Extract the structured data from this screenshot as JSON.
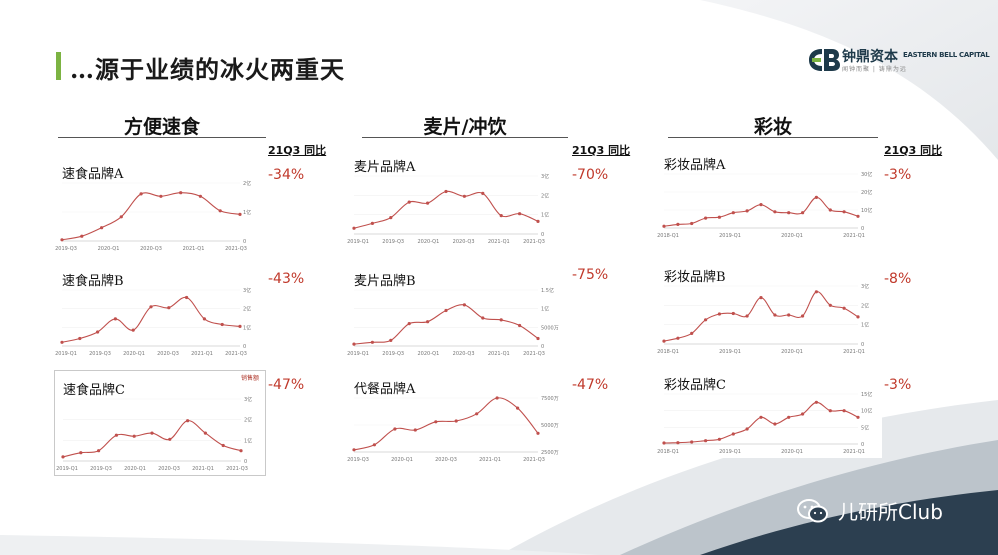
{
  "header": {
    "title": "…源于业绩的冰火两重天",
    "logo_cn": "钟鼎资本",
    "logo_en": "EASTERN BELL CAPITAL",
    "logo_sub": "闻钟而聚 | 铸鼎为远"
  },
  "categories": [
    {
      "title": "方便速食",
      "col_header": "21Q3 同比"
    },
    {
      "title": "麦片/冲饮",
      "col_header": "21Q3 同比"
    },
    {
      "title": "彩妆",
      "col_header": "21Q3 同比"
    }
  ],
  "colors": {
    "line": "#c0504d",
    "accent": "#c0392b",
    "title_bar": "#7cb342",
    "dark": "#1e3a4a"
  },
  "footer": {
    "text": "儿研所Club",
    "icon": "wechat-icon"
  },
  "chart_data": [
    {
      "type": "line",
      "name": "速食品牌A",
      "yoy": "-34%",
      "x_ticks": [
        "2019-Q3",
        "2020-Q1",
        "2020-Q3",
        "2021-Q1",
        "2021-Q3"
      ],
      "y_ticks": [
        "2亿",
        "1亿",
        "0"
      ],
      "ylim": [
        0,
        2.4
      ],
      "values": [
        0.05,
        0.2,
        0.55,
        1.0,
        1.95,
        1.85,
        2.0,
        1.85,
        1.25,
        1.1
      ]
    },
    {
      "type": "line",
      "name": "速食品牌B",
      "yoy": "-43%",
      "x_ticks": [
        "2019-Q1",
        "2019-Q3",
        "2020-Q1",
        "2020-Q3",
        "2021-Q1",
        "2021-Q3"
      ],
      "y_ticks": [
        "3亿",
        "2亿",
        "1亿",
        "0"
      ],
      "ylim": [
        0,
        3
      ],
      "values": [
        0.2,
        0.4,
        0.75,
        1.45,
        0.85,
        2.1,
        2.05,
        2.6,
        1.45,
        1.15,
        1.05
      ]
    },
    {
      "type": "line",
      "name": "速食品牌C",
      "yoy": "-47%",
      "legend": "销售额",
      "x_ticks": [
        "2019-Q1",
        "2019-Q3",
        "2020-Q1",
        "2020-Q3",
        "2021-Q1",
        "2021-Q3"
      ],
      "y_ticks": [
        "3亿",
        "2亿",
        "1亿",
        "0"
      ],
      "ylim": [
        0,
        3
      ],
      "values": [
        0.2,
        0.4,
        0.5,
        1.25,
        1.2,
        1.35,
        1.05,
        1.95,
        1.35,
        0.75,
        0.5
      ]
    },
    {
      "type": "line",
      "name": "麦片品牌A",
      "yoy": "-70%",
      "x_ticks": [
        "2019-Q1",
        "2019-Q3",
        "2020-Q1",
        "2020-Q3",
        "2021-Q1",
        "2021-Q3"
      ],
      "y_ticks": [
        "3亿",
        "2亿",
        "1亿",
        "0"
      ],
      "ylim": [
        0,
        3
      ],
      "values": [
        0.3,
        0.55,
        0.85,
        1.65,
        1.6,
        2.2,
        1.95,
        2.1,
        0.95,
        1.05,
        0.65
      ]
    },
    {
      "type": "line",
      "name": "麦片品牌B",
      "yoy": "-75%",
      "x_ticks": [
        "2019-Q1",
        "2019-Q3",
        "2020-Q1",
        "2020-Q3",
        "2021-Q1",
        "2021-Q3"
      ],
      "y_ticks": [
        "1.5亿",
        "1亿",
        "5000万",
        "0"
      ],
      "ylim": [
        0,
        1.5
      ],
      "values": [
        0.05,
        0.1,
        0.15,
        0.6,
        0.65,
        0.95,
        1.1,
        0.75,
        0.7,
        0.55,
        0.2
      ]
    },
    {
      "type": "line",
      "name": "代餐品牌A",
      "yoy": "-47%",
      "x_ticks": [
        "2019-Q3",
        "2020-Q1",
        "2020-Q3",
        "2021-Q1",
        "2021-Q3"
      ],
      "y_ticks": [
        "7500万",
        "5000万",
        "2500万"
      ],
      "ylim": [
        0,
        7500
      ],
      "values": [
        300,
        1000,
        3200,
        3050,
        4200,
        4300,
        5300,
        7500,
        6100,
        2600
      ]
    },
    {
      "type": "line",
      "name": "彩妆品牌A",
      "yoy": "-3%",
      "x_ticks": [
        "2018-Q1",
        "2019-Q1",
        "2020-Q1",
        "2021-Q1"
      ],
      "y_ticks": [
        "30亿",
        "20亿",
        "10亿",
        "0"
      ],
      "ylim": [
        0,
        30
      ],
      "values": [
        1,
        2,
        2.5,
        5.5,
        6,
        8.5,
        9.5,
        13,
        9,
        8.5,
        8.5,
        17,
        10,
        9,
        6.5
      ]
    },
    {
      "type": "line",
      "name": "彩妆品牌B",
      "yoy": "-8%",
      "x_ticks": [
        "2018-Q1",
        "2019-Q1",
        "2020-Q1",
        "2021-Q1"
      ],
      "y_ticks": [
        "3亿",
        "2亿",
        "1亿",
        "0"
      ],
      "ylim": [
        0,
        3
      ],
      "values": [
        0.15,
        0.3,
        0.55,
        1.25,
        1.55,
        1.58,
        1.45,
        2.4,
        1.5,
        1.5,
        1.45,
        2.7,
        2.0,
        1.85,
        1.4
      ]
    },
    {
      "type": "line",
      "name": "彩妆品牌C",
      "yoy": "-3%",
      "x_ticks": [
        "2018-Q1",
        "2019-Q1",
        "2020-Q1",
        "2021-Q1"
      ],
      "y_ticks": [
        "15亿",
        "10亿",
        "5亿",
        "0"
      ],
      "ylim": [
        0,
        15
      ],
      "values": [
        0.3,
        0.4,
        0.6,
        1.0,
        1.4,
        3.0,
        4.5,
        8.0,
        6.0,
        8.0,
        9.0,
        12.5,
        10.0,
        10.0,
        8.0
      ]
    }
  ]
}
